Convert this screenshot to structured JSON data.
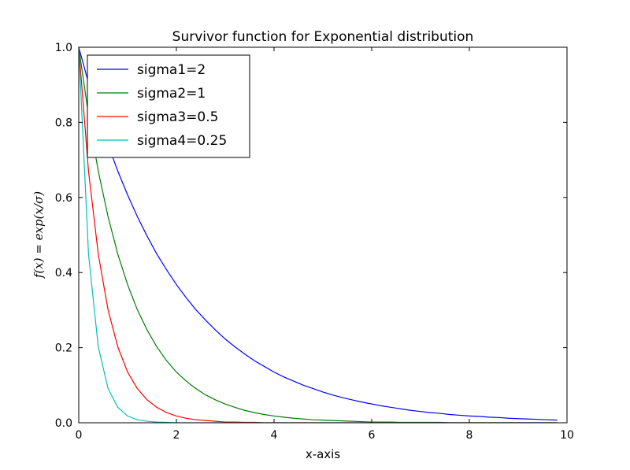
{
  "chart_data": {
    "type": "line",
    "title": "Survivor function for Exponential distribution",
    "xlabel": "x-axis",
    "ylabel": "f(x) = exp(x/σ)",
    "xlim": [
      0,
      10
    ],
    "ylim": [
      0,
      1.0
    ],
    "x_ticks": [
      "0",
      "2",
      "4",
      "6",
      "8",
      "10"
    ],
    "y_ticks": [
      "0.0",
      "0.2",
      "0.4",
      "0.6",
      "0.8",
      "1.0"
    ],
    "grid": false,
    "legend_position": "top-left",
    "x": [
      0,
      0.2,
      0.4,
      0.6,
      0.8,
      1.0,
      1.2,
      1.4,
      1.6,
      1.8,
      2.0,
      2.2,
      2.4,
      2.6,
      2.8,
      3.0,
      3.2,
      3.4,
      3.6,
      3.8,
      4.0,
      4.2,
      4.4,
      4.6,
      4.8,
      5.0,
      5.2,
      5.4,
      5.6,
      5.8,
      6.0,
      6.2,
      6.4,
      6.6,
      6.8,
      7.0,
      7.2,
      7.4,
      7.6,
      7.8,
      8.0,
      8.2,
      8.4,
      8.6,
      8.8,
      9.0,
      9.2,
      9.4,
      9.6,
      9.8
    ],
    "series": [
      {
        "name": "sigma1=2",
        "color": "#0000ff",
        "values": [
          1.0,
          0.905,
          0.819,
          0.741,
          0.67,
          0.607,
          0.549,
          0.497,
          0.449,
          0.407,
          0.368,
          0.333,
          0.301,
          0.273,
          0.247,
          0.223,
          0.202,
          0.183,
          0.165,
          0.15,
          0.135,
          0.122,
          0.111,
          0.1,
          0.091,
          0.082,
          0.074,
          0.067,
          0.061,
          0.055,
          0.05,
          0.045,
          0.041,
          0.037,
          0.033,
          0.03,
          0.027,
          0.025,
          0.022,
          0.02,
          0.018,
          0.017,
          0.015,
          0.014,
          0.012,
          0.011,
          0.01,
          0.009,
          0.008,
          0.007
        ]
      },
      {
        "name": "sigma2=1",
        "color": "#007f00",
        "values": [
          1.0,
          0.819,
          0.67,
          0.549,
          0.449,
          0.368,
          0.301,
          0.247,
          0.202,
          0.165,
          0.135,
          0.111,
          0.091,
          0.074,
          0.061,
          0.05,
          0.041,
          0.033,
          0.027,
          0.022,
          0.018,
          0.015,
          0.012,
          0.01,
          0.008,
          0.007,
          0.006,
          0.005,
          0.004,
          0.003,
          0.002,
          0.002,
          0.002,
          0.001,
          0.001,
          0.001,
          0.001,
          0.001,
          0.0,
          0.0,
          0.0,
          0.0,
          0.0,
          0.0,
          0.0,
          0.0,
          0.0,
          0.0,
          0.0,
          0.0
        ]
      },
      {
        "name": "sigma3=0.5",
        "color": "#ff0000",
        "values": [
          1.0,
          0.67,
          0.449,
          0.301,
          0.202,
          0.135,
          0.091,
          0.061,
          0.041,
          0.027,
          0.018,
          0.012,
          0.008,
          0.006,
          0.004,
          0.002,
          0.002,
          0.001,
          0.001,
          0.0,
          0.0,
          0.0,
          0.0,
          0.0,
          0.0,
          0.0,
          0.0,
          0.0,
          0.0,
          0.0,
          0.0,
          0.0,
          0.0,
          0.0,
          0.0,
          0.0,
          0.0,
          0.0,
          0.0,
          0.0,
          0.0,
          0.0,
          0.0,
          0.0,
          0.0,
          0.0,
          0.0,
          0.0,
          0.0,
          0.0
        ]
      },
      {
        "name": "sigma4=0.25",
        "color": "#00bfbf",
        "values": [
          1.0,
          0.449,
          0.202,
          0.091,
          0.041,
          0.018,
          0.008,
          0.004,
          0.002,
          0.001,
          0.0,
          0.0,
          0.0,
          0.0,
          0.0,
          0.0,
          0.0,
          0.0,
          0.0,
          0.0,
          0.0,
          0.0,
          0.0,
          0.0,
          0.0,
          0.0,
          0.0,
          0.0,
          0.0,
          0.0,
          0.0,
          0.0,
          0.0,
          0.0,
          0.0,
          0.0,
          0.0,
          0.0,
          0.0,
          0.0,
          0.0,
          0.0,
          0.0,
          0.0,
          0.0,
          0.0,
          0.0,
          0.0,
          0.0,
          0.0
        ]
      }
    ]
  }
}
